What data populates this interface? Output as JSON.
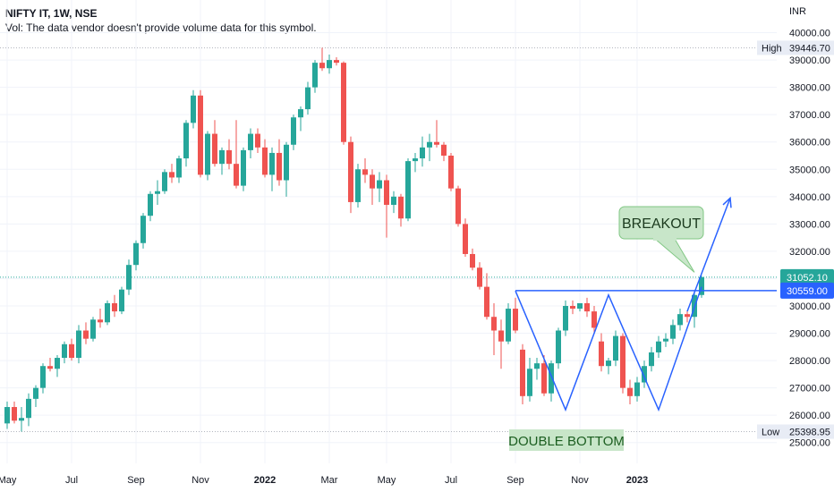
{
  "header": {
    "title": "NIFTY IT, 1W, NSE",
    "volume_note": "Vol: The data vendor doesn't provide volume data for this symbol."
  },
  "colors": {
    "up": "#26a69a",
    "down": "#ef5350",
    "drawing": "#2962ff",
    "grid": "#f0f3fa"
  },
  "chart_data": {
    "type": "candlestick",
    "currency_label": "INR",
    "ylim": [
      24500,
      41000
    ],
    "y_ticks": [
      25000,
      26000,
      27000,
      28000,
      29000,
      30000,
      31000,
      32000,
      33000,
      34000,
      35000,
      36000,
      37000,
      38000,
      39000,
      40000
    ],
    "y_tick_labels": [
      "25000.00",
      "26000.00",
      "27000.00",
      "28000.00",
      "29000.00",
      "30000.00",
      "31000.00",
      "32000.00",
      "33000.00",
      "34000.00",
      "35000.00",
      "36000.00",
      "37000.00",
      "38000.00",
      "39000.00",
      "40000.00"
    ],
    "x_range": [
      0,
      97
    ],
    "x_ticks": [
      {
        "label": "May",
        "week": 0
      },
      {
        "label": "Jul",
        "week": 9
      },
      {
        "label": "Sep",
        "week": 18
      },
      {
        "label": "Nov",
        "week": 27
      },
      {
        "label": "2022",
        "week": 36
      },
      {
        "label": "Mar",
        "week": 45
      },
      {
        "label": "May",
        "week": 53
      },
      {
        "label": "Jul",
        "week": 62
      },
      {
        "label": "Sep",
        "week": 71
      },
      {
        "label": "Nov",
        "week": 80
      },
      {
        "label": "2023",
        "week": 88
      }
    ],
    "candles": [
      [
        25700,
        26500,
        25500,
        26300
      ],
      [
        26300,
        26500,
        25700,
        25800
      ],
      [
        25800,
        26300,
        25400,
        25900
      ],
      [
        25900,
        26800,
        25600,
        26600
      ],
      [
        26600,
        27100,
        26300,
        27000
      ],
      [
        27000,
        27900,
        26800,
        27800
      ],
      [
        27800,
        28100,
        27600,
        27700
      ],
      [
        27700,
        28200,
        27400,
        28100
      ],
      [
        28100,
        28700,
        27900,
        28600
      ],
      [
        28600,
        28800,
        28000,
        28100
      ],
      [
        28100,
        29300,
        27900,
        29100
      ],
      [
        29100,
        29400,
        28600,
        28800
      ],
      [
        28800,
        29600,
        28700,
        29500
      ],
      [
        29500,
        29900,
        29200,
        29400
      ],
      [
        29400,
        30200,
        29300,
        30100
      ],
      [
        30100,
        30400,
        29600,
        29800
      ],
      [
        29800,
        30700,
        29700,
        30600
      ],
      [
        30600,
        31700,
        30400,
        31500
      ],
      [
        31500,
        32400,
        31300,
        32300
      ],
      [
        32300,
        33400,
        32100,
        33300
      ],
      [
        33300,
        34200,
        33100,
        34100
      ],
      [
        34100,
        34600,
        33700,
        34200
      ],
      [
        34200,
        35000,
        34100,
        34900
      ],
      [
        34900,
        35200,
        34500,
        34700
      ],
      [
        34700,
        35500,
        34500,
        35400
      ],
      [
        35400,
        36800,
        35100,
        36700
      ],
      [
        36700,
        37900,
        36500,
        37700
      ],
      [
        37700,
        37900,
        34700,
        34800
      ],
      [
        34800,
        36400,
        34600,
        36300
      ],
      [
        36300,
        36800,
        35100,
        35200
      ],
      [
        35200,
        35800,
        34800,
        35700
      ],
      [
        35700,
        36100,
        35000,
        35200
      ],
      [
        35200,
        36800,
        34300,
        34400
      ],
      [
        34400,
        35800,
        34200,
        35700
      ],
      [
        35700,
        36500,
        35400,
        36300
      ],
      [
        36300,
        36500,
        35600,
        35800
      ],
      [
        35800,
        36100,
        34700,
        34800
      ],
      [
        34800,
        35800,
        34200,
        35600
      ],
      [
        35600,
        36100,
        34400,
        34600
      ],
      [
        34600,
        36000,
        34000,
        35900
      ],
      [
        35900,
        37000,
        35700,
        36900
      ],
      [
        36900,
        37300,
        36400,
        37200
      ],
      [
        37200,
        38200,
        37000,
        38000
      ],
      [
        38000,
        39000,
        37800,
        38900
      ],
      [
        38900,
        39450,
        38600,
        38700
      ],
      [
        38700,
        39200,
        38500,
        39000
      ],
      [
        39000,
        39100,
        38800,
        38900
      ],
      [
        38900,
        38950,
        35900,
        36000
      ],
      [
        36000,
        36200,
        33400,
        33800
      ],
      [
        33800,
        35200,
        33600,
        35000
      ],
      [
        35000,
        35400,
        34500,
        34800
      ],
      [
        34800,
        35000,
        33700,
        34300
      ],
      [
        34300,
        34900,
        33800,
        34600
      ],
      [
        34600,
        34800,
        32500,
        33700
      ],
      [
        33700,
        34200,
        33400,
        34000
      ],
      [
        34000,
        34100,
        32900,
        33200
      ],
      [
        33200,
        35400,
        33100,
        35300
      ],
      [
        35300,
        35600,
        34900,
        35400
      ],
      [
        35400,
        36200,
        35100,
        35800
      ],
      [
        35800,
        36300,
        35300,
        36000
      ],
      [
        36000,
        36800,
        35800,
        35900
      ],
      [
        35900,
        36000,
        35300,
        35500
      ],
      [
        35500,
        35600,
        34200,
        34300
      ],
      [
        34300,
        34400,
        32900,
        33000
      ],
      [
        33000,
        33200,
        31800,
        31900
      ],
      [
        31900,
        32100,
        31300,
        31400
      ],
      [
        31400,
        31600,
        30600,
        30700
      ],
      [
        30700,
        31200,
        29500,
        29600
      ],
      [
        29600,
        30100,
        28200,
        29100
      ],
      [
        29100,
        29500,
        27700,
        28700
      ],
      [
        28700,
        30100,
        28600,
        29900
      ],
      [
        29900,
        30300,
        29000,
        29100
      ],
      [
        28400,
        28600,
        26400,
        26700
      ],
      [
        26700,
        28100,
        26500,
        27700
      ],
      [
        27700,
        28100,
        27300,
        27900
      ],
      [
        27900,
        28200,
        26700,
        26800
      ],
      [
        26800,
        28000,
        26500,
        27900
      ],
      [
        27900,
        29200,
        27700,
        29100
      ],
      [
        29100,
        30200,
        28900,
        30000
      ],
      [
        30000,
        30200,
        29700,
        29900
      ],
      [
        29900,
        30100,
        29800,
        30100
      ],
      [
        30100,
        30300,
        29600,
        29800
      ],
      [
        29800,
        30000,
        29000,
        29200
      ],
      [
        28700,
        29000,
        27600,
        27800
      ],
      [
        27800,
        28100,
        27500,
        28000
      ],
      [
        28000,
        29100,
        27800,
        28900
      ],
      [
        28900,
        29000,
        26800,
        27000
      ],
      [
        27000,
        27300,
        26400,
        26700
      ],
      [
        26700,
        27400,
        26500,
        27200
      ],
      [
        27200,
        28000,
        27000,
        27800
      ],
      [
        27800,
        28500,
        27600,
        28300
      ],
      [
        28300,
        28900,
        28100,
        28700
      ],
      [
        28700,
        29000,
        28500,
        28800
      ],
      [
        28800,
        29500,
        28600,
        29300
      ],
      [
        29300,
        29900,
        29100,
        29700
      ],
      [
        29700,
        29800,
        29400,
        29600
      ],
      [
        29600,
        30500,
        29200,
        30400
      ],
      [
        30400,
        31100,
        30300,
        31052
      ]
    ],
    "high_marker": {
      "label": "High",
      "value": 39446.7,
      "text": "39446.70"
    },
    "low_marker": {
      "label": "Low",
      "value": 25398.95,
      "text": "25398.95"
    },
    "last_price": {
      "value": 31052.1,
      "text": "31052.10"
    },
    "neckline_price": {
      "value": 30559.0,
      "text": "30559.00"
    },
    "annotations": {
      "breakout": "BREAKOUT",
      "double_bottom": "DOUBLE BOTTOM"
    },
    "neckline": {
      "week_start": 71,
      "week_end": 97,
      "value": 30559
    },
    "pattern_path": [
      [
        71,
        30550
      ],
      [
        78,
        26200
      ],
      [
        84,
        30400
      ],
      [
        91,
        26200
      ],
      [
        97,
        30700
      ]
    ],
    "projection_arrow": [
      [
        95,
        29800
      ],
      [
        101,
        33950
      ]
    ]
  }
}
